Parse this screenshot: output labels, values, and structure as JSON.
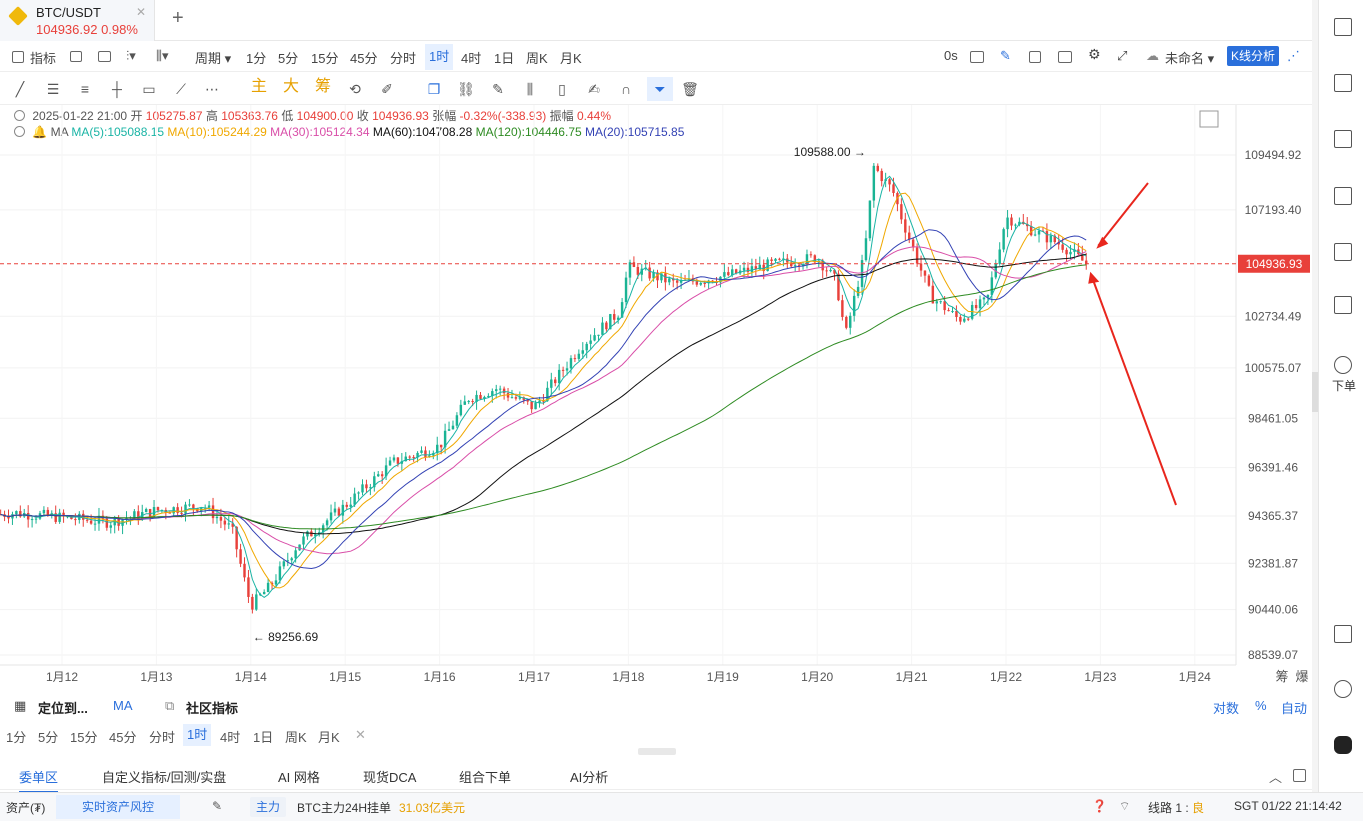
{
  "tab": {
    "symbol": "BTC/USDT",
    "price_change": "104936.92  0.98%",
    "add": "+"
  },
  "toolbar": {
    "indicators": "指标",
    "period": "周期",
    "timeframes": [
      "1分",
      "5分",
      "15分",
      "45分",
      "分时",
      "1时",
      "4时",
      "1日",
      "周K",
      "月K"
    ],
    "active_timeframe": "1时",
    "countdown": "0s",
    "layout_name": "未命名",
    "kline_analysis": "K线分析"
  },
  "drawbar": {
    "labels_cn": [
      "主",
      "大",
      "筹"
    ]
  },
  "info": {
    "datetime": "2025-01-22 21:00",
    "open_label": "开",
    "open": "105275.87",
    "high_label": "高",
    "high": "105363.76",
    "low_label": "低",
    "low": "104900.00",
    "close_label": "收",
    "close": "104936.93",
    "change_label": "张幅",
    "change": "-0.32%(-338.93)",
    "amp_label": "振幅",
    "amp": "0.44%"
  },
  "ma": {
    "label": "MA",
    "items": [
      {
        "text": "MA(5):105088.15",
        "color": "#1ab4a5"
      },
      {
        "text": "MA(10):105244.29",
        "color": "#f0a800"
      },
      {
        "text": "MA(30):105124.34",
        "color": "#d94ea8"
      },
      {
        "text": "MA(60):104708.28",
        "color": "#111111"
      },
      {
        "text": "MA(120):104446.75",
        "color": "#2e8b22"
      },
      {
        "text": "MA(20):105715.85",
        "color": "#3342b4"
      }
    ]
  },
  "chart_data": {
    "type": "candlestick",
    "symbol": "BTC/USDT",
    "timeframe": "1时",
    "y_ticks": [
      "109494.92",
      "107193.40",
      "104936.93",
      "102734.49",
      "100575.07",
      "98461.05",
      "96391.46",
      "94365.37",
      "92381.87",
      "90440.06",
      "88539.07"
    ],
    "current_price_label": "104936.93",
    "x_ticks": [
      "1月12",
      "1月13",
      "1月14",
      "1月15",
      "1月16",
      "1月17",
      "1月18",
      "1月19",
      "1月20",
      "1月21",
      "1月22",
      "1月23",
      "1月24"
    ],
    "max_label": "109588.00",
    "min_label": "89256.69",
    "ylim": [
      88539.07,
      109494.92
    ],
    "up_color": "#1ab394",
    "down_color": "#e8403a",
    "price_path": [
      [
        11.0,
        94300
      ],
      [
        11.5,
        94500
      ],
      [
        12.0,
        94300
      ],
      [
        12.5,
        94100
      ],
      [
        13.0,
        94600
      ],
      [
        13.5,
        94800
      ],
      [
        13.8,
        93800
      ],
      [
        14.0,
        90600
      ],
      [
        14.2,
        91400
      ],
      [
        14.5,
        93200
      ],
      [
        15.0,
        94800
      ],
      [
        15.5,
        96600
      ],
      [
        16.0,
        97300
      ],
      [
        16.3,
        99300
      ],
      [
        16.6,
        99700
      ],
      [
        17.0,
        98900
      ],
      [
        17.5,
        101500
      ],
      [
        17.9,
        102900
      ],
      [
        18.0,
        104800
      ],
      [
        18.5,
        104100
      ],
      [
        19.0,
        104400
      ],
      [
        19.5,
        104900
      ],
      [
        20.0,
        105200
      ],
      [
        20.2,
        104200
      ],
      [
        20.3,
        101900
      ],
      [
        20.5,
        105300
      ],
      [
        20.6,
        109000
      ],
      [
        20.8,
        108000
      ],
      [
        20.9,
        106800
      ],
      [
        21.2,
        103600
      ],
      [
        21.5,
        102600
      ],
      [
        21.8,
        103400
      ],
      [
        22.0,
        106900
      ],
      [
        22.3,
        106300
      ],
      [
        22.6,
        105700
      ],
      [
        22.85,
        104937
      ]
    ],
    "extra_labels": [
      "筹",
      "爆"
    ]
  },
  "indicator_row": {
    "locate": "定位到...",
    "ma": "MA",
    "community": "社区指标",
    "log": "对数",
    "percent": "%",
    "auto": "自动"
  },
  "bottom_timeframes": [
    "1分",
    "5分",
    "15分",
    "45分",
    "分时",
    "1时",
    "4时",
    "1日",
    "周K",
    "月K"
  ],
  "bottom_active": "1时",
  "order_tabs": [
    "委单区",
    "自定义指标/回测/实盘",
    "AI 网格",
    "现货DCA",
    "组合下单",
    "AI分析"
  ],
  "status": {
    "assets": "资产(₮)",
    "risk": "实时资产风控",
    "main": "主力",
    "main_text": "BTC主力24H挂单",
    "main_value": "31.03亿美元",
    "line": "线路 1 : ",
    "line_quality": "良",
    "clock": "SGT  01/22 21:14:42"
  },
  "sidebar": {
    "order_label": "下单"
  }
}
